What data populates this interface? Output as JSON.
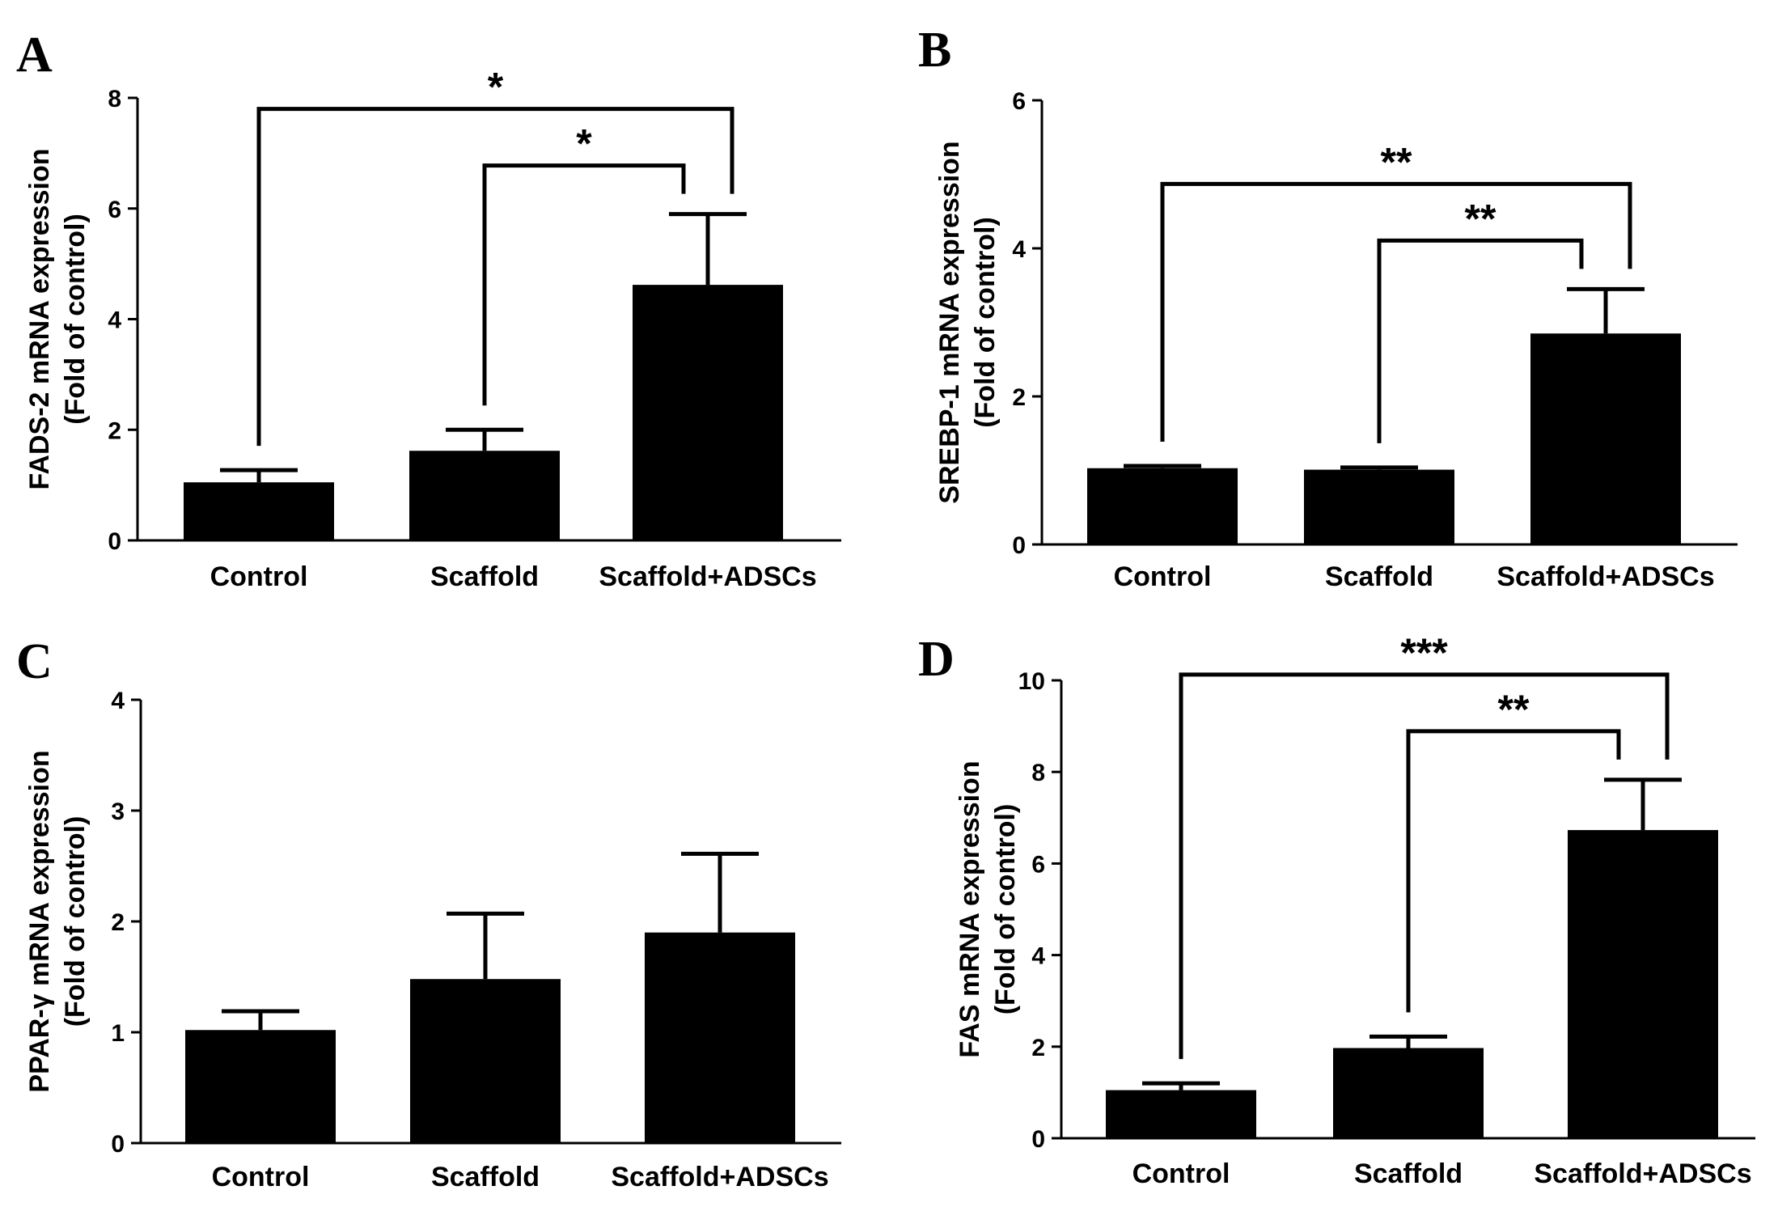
{
  "chart_data": [
    {
      "type": "bar",
      "panel": "A",
      "categories": [
        "Control",
        "Scaffold",
        "Scaffold+ADSCs"
      ],
      "values": [
        1.05,
        1.62,
        4.62
      ],
      "errors": [
        0.22,
        0.38,
        1.28
      ],
      "ylabel_line1": "FADS-2 mRNA expression",
      "ylabel_line2": "(Fold of control)",
      "ylim": [
        0,
        8
      ],
      "yticks": [
        0,
        2,
        4,
        6,
        8
      ],
      "significance": [
        {
          "from": 0,
          "to": 2,
          "label": "*"
        },
        {
          "from": 1,
          "to": 2,
          "label": "*"
        }
      ]
    },
    {
      "type": "bar",
      "panel": "B",
      "categories": [
        "Control",
        "Scaffold",
        "Scaffold+ADSCs"
      ],
      "values": [
        1.03,
        1.01,
        2.85
      ],
      "errors": [
        0.03,
        0.03,
        0.6
      ],
      "ylabel_line1": "SREBP-1 mRNA expression",
      "ylabel_line2": "(Fold of control)",
      "ylim": [
        0,
        6
      ],
      "yticks": [
        0,
        2,
        4,
        6
      ],
      "significance": [
        {
          "from": 0,
          "to": 2,
          "label": "**"
        },
        {
          "from": 1,
          "to": 2,
          "label": "**"
        }
      ]
    },
    {
      "type": "bar",
      "panel": "C",
      "categories": [
        "Control",
        "Scaffold",
        "Scaffold+ADSCs"
      ],
      "values": [
        1.02,
        1.48,
        1.9
      ],
      "errors": [
        0.17,
        0.59,
        0.71
      ],
      "ylabel_line1": "PPAR-γ mRNA expression",
      "ylabel_line2": "(Fold of control)",
      "ylim": [
        0,
        4
      ],
      "yticks": [
        0,
        1,
        2,
        3,
        4
      ],
      "significance": []
    },
    {
      "type": "bar",
      "panel": "D",
      "categories": [
        "Control",
        "Scaffold",
        "Scaffold+ADSCs"
      ],
      "values": [
        1.05,
        1.97,
        6.73
      ],
      "errors": [
        0.15,
        0.25,
        1.1
      ],
      "ylabel_line1": "FAS mRNA expression",
      "ylabel_line2": "(Fold of control)",
      "ylim": [
        0,
        10
      ],
      "yticks": [
        0,
        2,
        4,
        6,
        8,
        10
      ],
      "significance": [
        {
          "from": 0,
          "to": 2,
          "label": "***"
        },
        {
          "from": 1,
          "to": 2,
          "label": "**"
        }
      ]
    }
  ]
}
